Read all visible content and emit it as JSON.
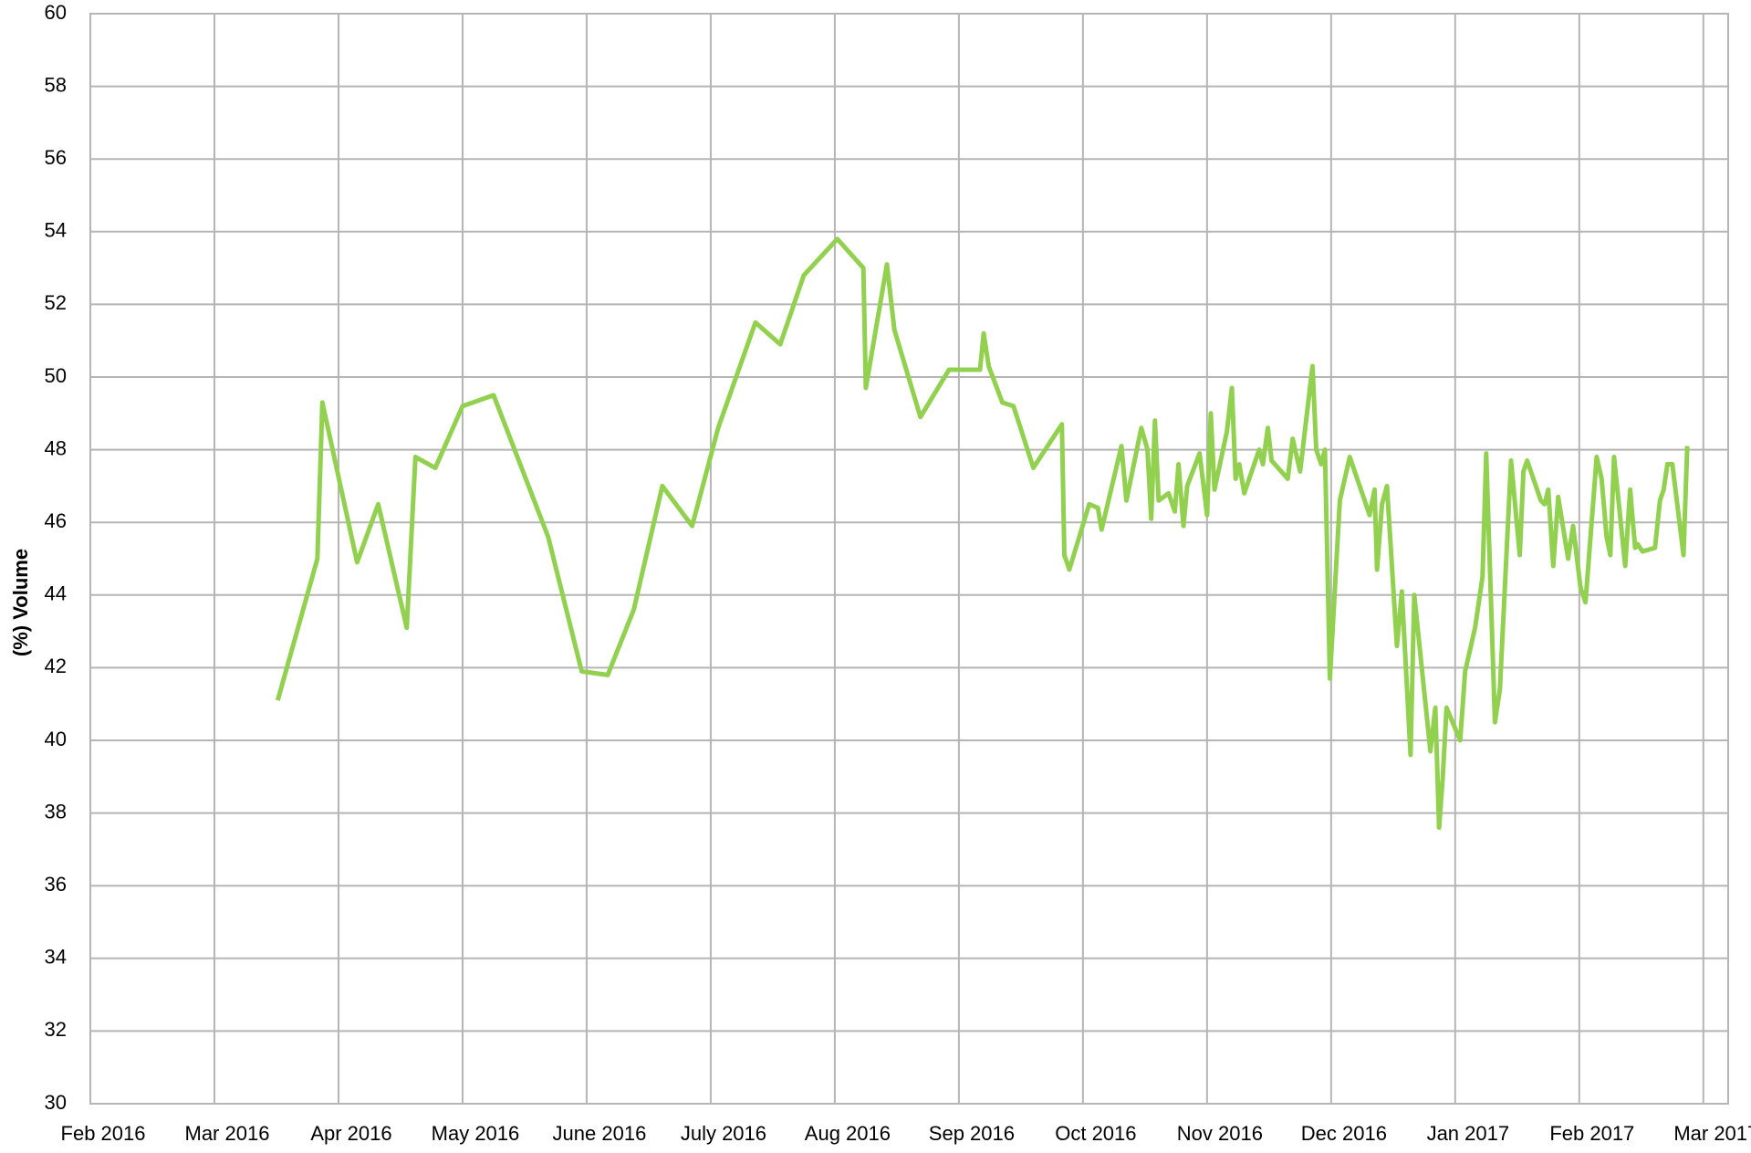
{
  "chart_data": {
    "type": "line",
    "y_label": "(%) Volume",
    "x": [
      1.51,
      1.83,
      1.87,
      2.15,
      2.32,
      2.55,
      2.62,
      2.78,
      3.0,
      3.25,
      3.69,
      3.96,
      4.17,
      4.38,
      4.61,
      4.85,
      5.06,
      5.36,
      5.56,
      5.75,
      6.02,
      6.23,
      6.25,
      6.42,
      6.48,
      6.69,
      6.92,
      7.17,
      7.2,
      7.24,
      7.35,
      7.44,
      7.6,
      7.83,
      7.85,
      7.89,
      8.05,
      8.12,
      8.15,
      8.31,
      8.35,
      8.47,
      8.52,
      8.55,
      8.58,
      8.61,
      8.69,
      8.74,
      8.77,
      8.81,
      8.84,
      8.94,
      9.0,
      9.03,
      9.06,
      9.16,
      9.2,
      9.23,
      9.26,
      9.3,
      9.42,
      9.45,
      9.49,
      9.52,
      9.65,
      9.69,
      9.75,
      9.85,
      9.88,
      9.92,
      9.95,
      9.99,
      10.07,
      10.15,
      10.31,
      10.35,
      10.37,
      10.41,
      10.45,
      10.53,
      10.57,
      10.64,
      10.67,
      10.8,
      10.84,
      10.87,
      10.9,
      10.93,
      11.04,
      11.08,
      11.16,
      11.22,
      11.25,
      11.32,
      11.36,
      11.45,
      11.52,
      11.55,
      11.58,
      11.69,
      11.72,
      11.75,
      11.79,
      11.83,
      11.91,
      11.95,
      12.01,
      12.05,
      12.14,
      12.18,
      12.22,
      12.25,
      12.28,
      12.37,
      12.41,
      12.45,
      12.47,
      12.51,
      12.61,
      12.65,
      12.68,
      12.71,
      12.75,
      12.84,
      12.87
    ],
    "series": [
      {
        "color": "#92d050",
        "values": [
          41.1,
          45.0,
          49.3,
          44.9,
          46.5,
          43.1,
          47.8,
          47.5,
          49.2,
          49.5,
          45.6,
          41.9,
          41.8,
          43.6,
          47.0,
          45.9,
          48.6,
          51.5,
          50.9,
          52.8,
          53.8,
          53.0,
          49.7,
          53.1,
          51.3,
          48.9,
          50.2,
          50.2,
          51.2,
          50.3,
          49.3,
          49.2,
          47.5,
          48.7,
          45.1,
          44.7,
          46.5,
          46.4,
          45.8,
          48.1,
          46.6,
          48.6,
          48.0,
          46.1,
          48.8,
          46.6,
          46.8,
          46.3,
          47.6,
          45.9,
          47.0,
          47.9,
          46.2,
          49.0,
          46.9,
          48.5,
          49.7,
          47.2,
          47.6,
          46.8,
          48.0,
          47.6,
          48.6,
          47.7,
          47.2,
          48.3,
          47.4,
          50.3,
          48.0,
          47.6,
          48.0,
          41.7,
          46.6,
          47.8,
          46.2,
          46.9,
          44.7,
          46.5,
          47.0,
          42.6,
          44.1,
          39.6,
          44.0,
          39.7,
          40.9,
          37.6,
          39.0,
          40.9,
          40.0,
          41.9,
          43.1,
          44.5,
          47.9,
          40.5,
          41.4,
          47.7,
          45.1,
          47.4,
          47.7,
          46.6,
          46.5,
          46.9,
          44.8,
          46.7,
          45.0,
          45.9,
          44.2,
          43.8,
          47.8,
          47.2,
          45.6,
          45.1,
          47.8,
          44.8,
          46.9,
          45.3,
          45.4,
          45.2,
          45.3,
          46.6,
          46.9,
          47.6,
          47.6,
          45.1,
          48.1
        ]
      }
    ],
    "xlim": [
      0,
      13.2
    ],
    "xticks": [
      {
        "value": 0,
        "label": "Feb 2016"
      },
      {
        "value": 1,
        "label": "Mar 2016"
      },
      {
        "value": 2,
        "label": "Apr 2016"
      },
      {
        "value": 3,
        "label": "May 2016"
      },
      {
        "value": 4,
        "label": "June 2016"
      },
      {
        "value": 5,
        "label": "July 2016"
      },
      {
        "value": 6,
        "label": "Aug 2016"
      },
      {
        "value": 7,
        "label": "Sep 2016"
      },
      {
        "value": 8,
        "label": "Oct 2016"
      },
      {
        "value": 9,
        "label": "Nov 2016"
      },
      {
        "value": 10,
        "label": "Dec 2016"
      },
      {
        "value": 11,
        "label": "Jan 2017"
      },
      {
        "value": 12,
        "label": "Feb 2017"
      },
      {
        "value": 13,
        "label": "Mar 2017"
      }
    ],
    "ylim": [
      30,
      60
    ],
    "yticks": [
      30,
      32,
      34,
      36,
      38,
      40,
      42,
      44,
      46,
      48,
      50,
      52,
      54,
      56,
      58,
      60
    ],
    "grid": true
  }
}
